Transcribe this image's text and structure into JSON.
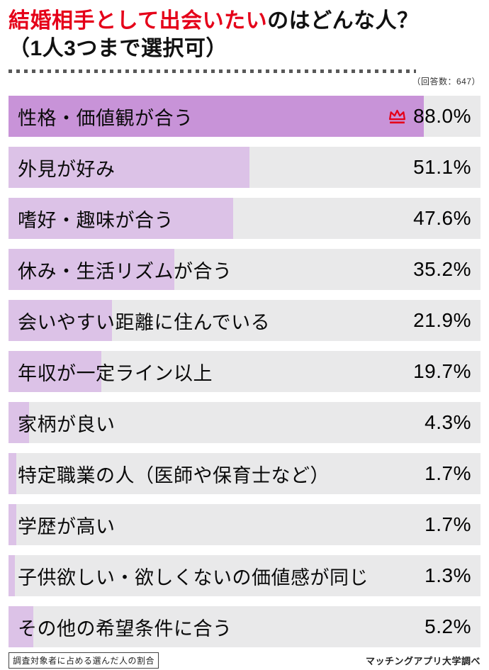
{
  "title": {
    "highlight": "結婚相手として出会いたい",
    "rest": "のはどんな人？",
    "line2": "（1人3つまで選択可）"
  },
  "meta": {
    "response_count": "（回答数：647）"
  },
  "chart_data": {
    "type": "bar",
    "orientation": "horizontal",
    "title": "結婚相手として出会いたいのはどんな人？（1人3つまで選択可）",
    "xlim": [
      0,
      100
    ],
    "legend": "none",
    "grid": false,
    "categories": [
      "性格・価値観が合う",
      "外見が好み",
      "嗜好・趣味が合う",
      "休み・生活リズムが合う",
      "会いやすい距離に住んでいる",
      "年収が一定ライン以上",
      "家柄が良い",
      "特定職業の人（医師や保育士など）",
      "学歴が高い",
      "子供欲しい・欲しくないの価値感が同じ",
      "その他の希望条件に合う"
    ],
    "values": [
      88.0,
      51.1,
      47.6,
      35.2,
      21.9,
      19.7,
      4.3,
      1.7,
      1.7,
      1.3,
      5.2
    ],
    "value_labels": [
      "88.0%",
      "51.1%",
      "47.6%",
      "35.2%",
      "21.9%",
      "19.7%",
      "4.3%",
      "1.7%",
      "1.7%",
      "1.3%",
      "5.2%"
    ],
    "top_item": {
      "index": 0,
      "marker": "crown-icon",
      "highlighted": true
    }
  },
  "footer": {
    "note": "調査対象者に占める選んだ人の割合",
    "source": "マッチングアプリ大学調べ"
  },
  "colors": {
    "title_red": "#e50019",
    "crown_red": "#e50019",
    "bar_top": "#c893d8",
    "bar_normal": "#dcc2e7",
    "row_bg": "#e9e9ea"
  }
}
